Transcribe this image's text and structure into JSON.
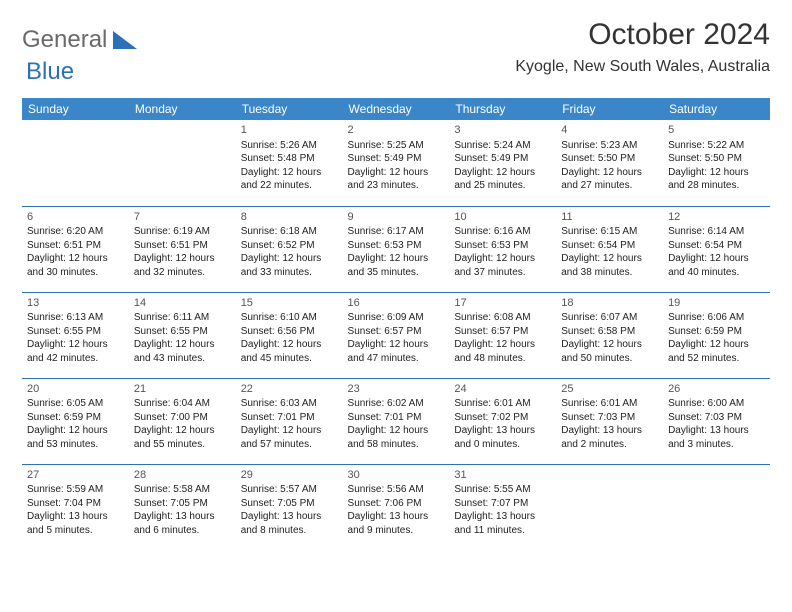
{
  "logo": {
    "text_a": "General",
    "text_b": "Blue"
  },
  "header": {
    "month_title": "October 2024",
    "location": "Kyogle, New South Wales, Australia"
  },
  "colors": {
    "header_bg": "#3a86c8",
    "header_text": "#ffffff",
    "rule": "#2d70b7",
    "logo_gray": "#6a6a6a",
    "logo_blue": "#2d70b7"
  },
  "weekdays": [
    "Sunday",
    "Monday",
    "Tuesday",
    "Wednesday",
    "Thursday",
    "Friday",
    "Saturday"
  ],
  "calendar": {
    "type": "table",
    "weeks": [
      [
        null,
        null,
        {
          "d": "1",
          "sr": "5:26 AM",
          "ss": "5:48 PM",
          "dl": "12 hours and 22 minutes."
        },
        {
          "d": "2",
          "sr": "5:25 AM",
          "ss": "5:49 PM",
          "dl": "12 hours and 23 minutes."
        },
        {
          "d": "3",
          "sr": "5:24 AM",
          "ss": "5:49 PM",
          "dl": "12 hours and 25 minutes."
        },
        {
          "d": "4",
          "sr": "5:23 AM",
          "ss": "5:50 PM",
          "dl": "12 hours and 27 minutes."
        },
        {
          "d": "5",
          "sr": "5:22 AM",
          "ss": "5:50 PM",
          "dl": "12 hours and 28 minutes."
        }
      ],
      [
        {
          "d": "6",
          "sr": "6:20 AM",
          "ss": "6:51 PM",
          "dl": "12 hours and 30 minutes."
        },
        {
          "d": "7",
          "sr": "6:19 AM",
          "ss": "6:51 PM",
          "dl": "12 hours and 32 minutes."
        },
        {
          "d": "8",
          "sr": "6:18 AM",
          "ss": "6:52 PM",
          "dl": "12 hours and 33 minutes."
        },
        {
          "d": "9",
          "sr": "6:17 AM",
          "ss": "6:53 PM",
          "dl": "12 hours and 35 minutes."
        },
        {
          "d": "10",
          "sr": "6:16 AM",
          "ss": "6:53 PM",
          "dl": "12 hours and 37 minutes."
        },
        {
          "d": "11",
          "sr": "6:15 AM",
          "ss": "6:54 PM",
          "dl": "12 hours and 38 minutes."
        },
        {
          "d": "12",
          "sr": "6:14 AM",
          "ss": "6:54 PM",
          "dl": "12 hours and 40 minutes."
        }
      ],
      [
        {
          "d": "13",
          "sr": "6:13 AM",
          "ss": "6:55 PM",
          "dl": "12 hours and 42 minutes."
        },
        {
          "d": "14",
          "sr": "6:11 AM",
          "ss": "6:55 PM",
          "dl": "12 hours and 43 minutes."
        },
        {
          "d": "15",
          "sr": "6:10 AM",
          "ss": "6:56 PM",
          "dl": "12 hours and 45 minutes."
        },
        {
          "d": "16",
          "sr": "6:09 AM",
          "ss": "6:57 PM",
          "dl": "12 hours and 47 minutes."
        },
        {
          "d": "17",
          "sr": "6:08 AM",
          "ss": "6:57 PM",
          "dl": "12 hours and 48 minutes."
        },
        {
          "d": "18",
          "sr": "6:07 AM",
          "ss": "6:58 PM",
          "dl": "12 hours and 50 minutes."
        },
        {
          "d": "19",
          "sr": "6:06 AM",
          "ss": "6:59 PM",
          "dl": "12 hours and 52 minutes."
        }
      ],
      [
        {
          "d": "20",
          "sr": "6:05 AM",
          "ss": "6:59 PM",
          "dl": "12 hours and 53 minutes."
        },
        {
          "d": "21",
          "sr": "6:04 AM",
          "ss": "7:00 PM",
          "dl": "12 hours and 55 minutes."
        },
        {
          "d": "22",
          "sr": "6:03 AM",
          "ss": "7:01 PM",
          "dl": "12 hours and 57 minutes."
        },
        {
          "d": "23",
          "sr": "6:02 AM",
          "ss": "7:01 PM",
          "dl": "12 hours and 58 minutes."
        },
        {
          "d": "24",
          "sr": "6:01 AM",
          "ss": "7:02 PM",
          "dl": "13 hours and 0 minutes."
        },
        {
          "d": "25",
          "sr": "6:01 AM",
          "ss": "7:03 PM",
          "dl": "13 hours and 2 minutes."
        },
        {
          "d": "26",
          "sr": "6:00 AM",
          "ss": "7:03 PM",
          "dl": "13 hours and 3 minutes."
        }
      ],
      [
        {
          "d": "27",
          "sr": "5:59 AM",
          "ss": "7:04 PM",
          "dl": "13 hours and 5 minutes."
        },
        {
          "d": "28",
          "sr": "5:58 AM",
          "ss": "7:05 PM",
          "dl": "13 hours and 6 minutes."
        },
        {
          "d": "29",
          "sr": "5:57 AM",
          "ss": "7:05 PM",
          "dl": "13 hours and 8 minutes."
        },
        {
          "d": "30",
          "sr": "5:56 AM",
          "ss": "7:06 PM",
          "dl": "13 hours and 9 minutes."
        },
        {
          "d": "31",
          "sr": "5:55 AM",
          "ss": "7:07 PM",
          "dl": "13 hours and 11 minutes."
        },
        null,
        null
      ]
    ]
  },
  "labels": {
    "sunrise": "Sunrise: ",
    "sunset": "Sunset: ",
    "daylight": "Daylight: "
  }
}
